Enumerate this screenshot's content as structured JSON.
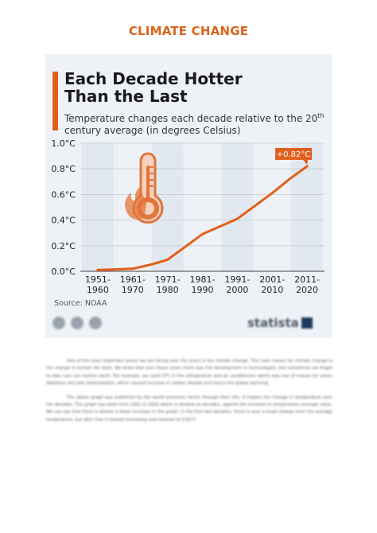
{
  "page_heading": "CLIMATE CHANGE",
  "chart_card": {
    "title_line1": "Each Decade Hotter",
    "title_line2": "Than the Last",
    "subtitle_part1": "Temperature changes each decade relative to the 20",
    "subtitle_sup": "th",
    "subtitle_part2": " century average (in degrees Celsius)",
    "source": "Source: NOAA",
    "brand": "statista",
    "footer_icons": [
      "cc-icon",
      "info-icon",
      "share-icon"
    ]
  },
  "chart_data": {
    "type": "line",
    "title": "Each Decade Hotter Than the Last",
    "subtitle": "Temperature changes each decade relative to the 20th century average (in degrees Celsius)",
    "categories": [
      "1951-1960",
      "1961-1970",
      "1971-1980",
      "1981-1990",
      "1991-2000",
      "2001-2010",
      "2011-2020"
    ],
    "category_label_lines": [
      [
        "1951-",
        "1960"
      ],
      [
        "1961-",
        "1970"
      ],
      [
        "1971-",
        "1980"
      ],
      [
        "1981-",
        "1990"
      ],
      [
        "1991-",
        "2000"
      ],
      [
        "2001-",
        "2010"
      ],
      [
        "2011-",
        "2020"
      ]
    ],
    "x": [
      0,
      0.5,
      1,
      1.5,
      2,
      2.5,
      3,
      3.5,
      4,
      4.5,
      5,
      5.5,
      6
    ],
    "values": [
      0.01,
      0.015,
      0.02,
      0.05,
      0.09,
      0.19,
      0.29,
      0.35,
      0.41,
      0.51,
      0.61,
      0.72,
      0.82
    ],
    "yticks": [
      "0.0°C",
      "0.2°C",
      "0.4°C",
      "0.6°C",
      "0.8°C",
      "1.0°C"
    ],
    "ytick_values": [
      0,
      0.2,
      0.4,
      0.6,
      0.8,
      1.0
    ],
    "ylim": [
      0,
      1.0
    ],
    "annotation": "+0.82°C",
    "grid": true,
    "line_color": "#e0601b",
    "band_color": "#e2e8f0"
  },
  "article": {
    "paragraph1": "One of the most important issues we are facing over the years is the climate change. The main reason for climate change is the change in human life style. We know that over these years there was the development in technologies, but sometimes we forget to take care our mother earth. For example, we used CFC in the refrigeration and air conditioners which was one of reason for ozone depletion and also deforestation, which caused increase in carbon dioxide and hence the global warming.",
    "paragraph2": "The above graph was published by the world economic forum through their site. It implies the change in temperature over the decades. The graph has plots from 1951 to 2020 which is divided as decades, against the increase in temperature average value. We can say that there is almost a linear increase in the graph. In the first two decades, there is only a small change from the average temperature, but after that it started increasing and reached at 0.82°C."
  }
}
